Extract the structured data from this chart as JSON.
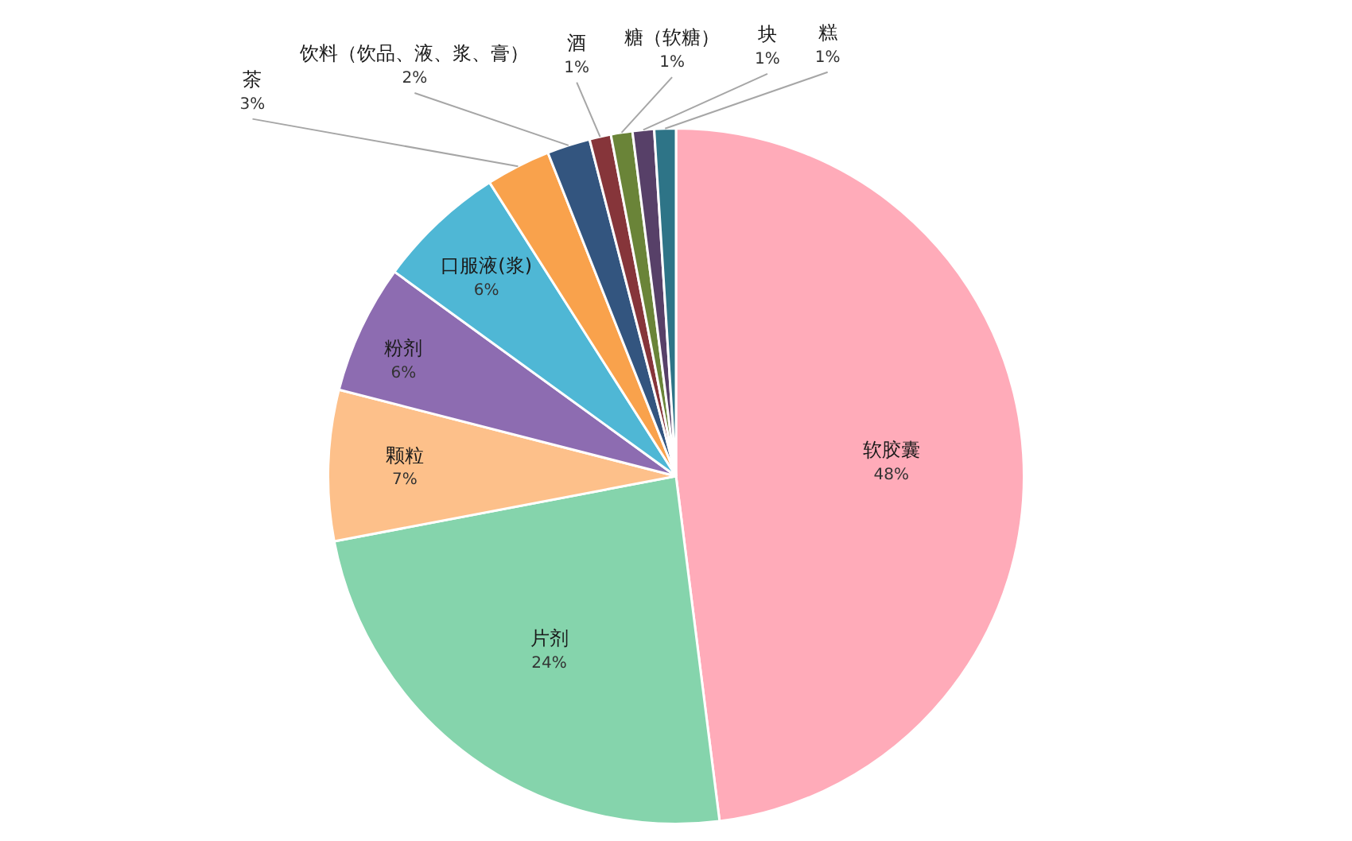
{
  "chart_data": {
    "type": "pie",
    "categories": [
      "软胶囊",
      "片剂",
      "颗粒",
      "粉剂",
      "口服液(浆)",
      "茶",
      "饮料（饮品、液、浆、膏）",
      "酒",
      "糖（软糖）",
      "块",
      "糕"
    ],
    "values": [
      48,
      24,
      7,
      6,
      6,
      3,
      2,
      1,
      1,
      1,
      1
    ],
    "value_labels": [
      "48%",
      "24%",
      "7%",
      "6%",
      "6%",
      "3%",
      "2%",
      "1%",
      "1%",
      "1%",
      "1%"
    ],
    "colors": [
      "#ffabb9",
      "#85d4ac",
      "#fdc08a",
      "#8d6cb1",
      "#4fb7d5",
      "#f9a24c",
      "#33557f",
      "#86353a",
      "#6a8438",
      "#574068",
      "#2e7487"
    ],
    "legend": false
  }
}
